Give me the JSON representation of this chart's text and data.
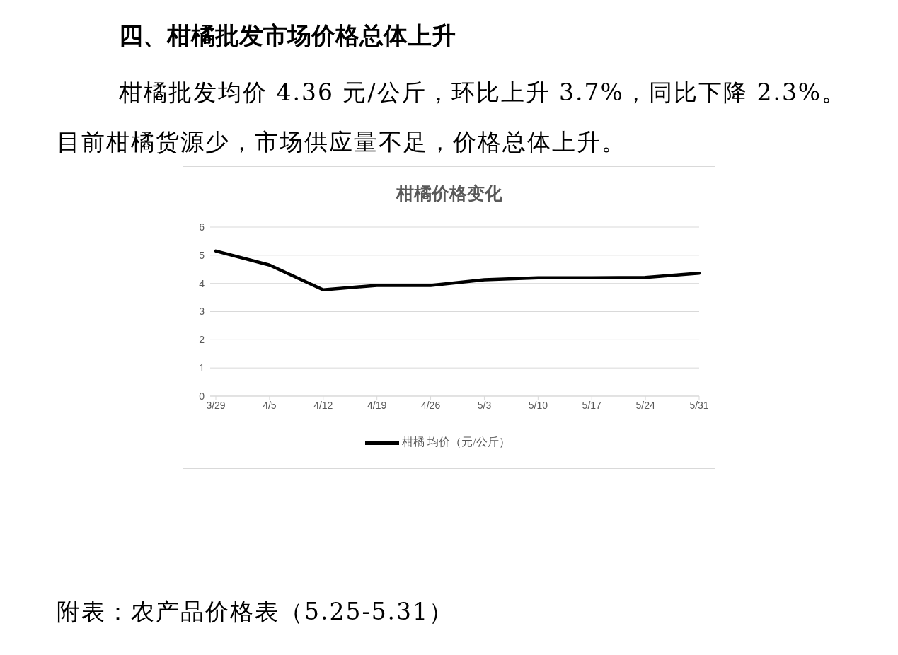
{
  "chart_data": {
    "type": "line",
    "title": "柑橘价格变化",
    "annotations": [
      "四、柑橘批发市场价格总体上升",
      "柑橘批发均价 4.36 元/公斤，环比上升 3.7%，同比下降 2.3%。目前柑橘货源少，市场供应量不足，价格总体上升。",
      "附表：农产品价格表（5.25-5.31）"
    ],
    "categories": [
      "3/29",
      "4/5",
      "4/12",
      "4/19",
      "4/26",
      "5/3",
      "5/10",
      "5/17",
      "5/24",
      "5/31"
    ],
    "series": [
      {
        "name": "柑橘 均价（元/公斤）",
        "color": "#000000",
        "values": [
          5.15,
          4.65,
          3.77,
          3.93,
          3.93,
          4.13,
          4.2,
          4.2,
          4.21,
          4.36
        ]
      }
    ],
    "ylim": [
      0,
      6
    ],
    "yticks": [
      0,
      1,
      2,
      3,
      4,
      5,
      6
    ],
    "grid": "y",
    "legend": "bottom",
    "marker": "none",
    "line_style": "solid"
  }
}
